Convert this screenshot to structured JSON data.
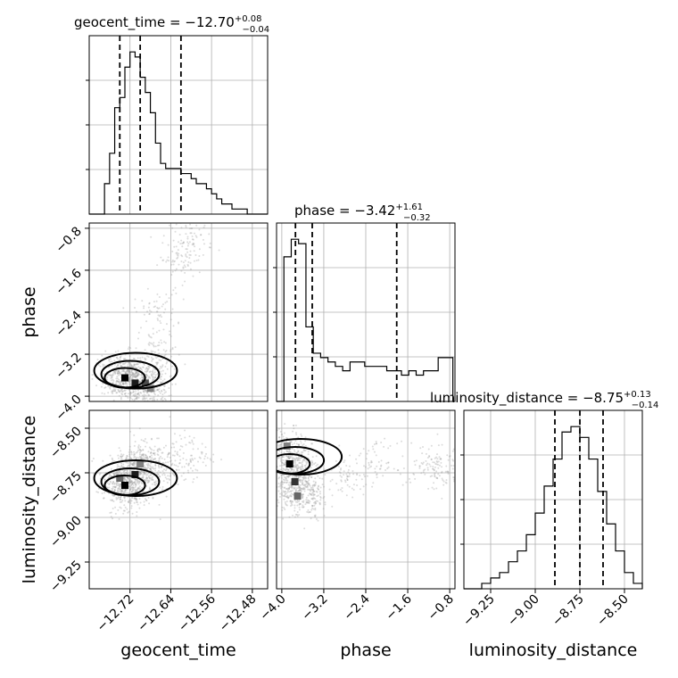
{
  "chart_data": {
    "type": "corner",
    "parameters": [
      "geocent_time",
      "phase",
      "luminosity_distance"
    ],
    "titles": {
      "geocent_time": {
        "name": "geocent_time",
        "median": "−12.70",
        "plus": "+0.08",
        "minus": "−0.04"
      },
      "phase": {
        "name": "phase",
        "median": "−3.42",
        "plus": "+1.61",
        "minus": "−0.32"
      },
      "luminosity_distance": {
        "name": "luminosity_distance",
        "median": "−8.75",
        "plus": "+0.13",
        "minus": "−0.14"
      }
    },
    "axes": {
      "geocent_time": {
        "range": [
          -12.8,
          -12.45
        ],
        "ticks": [
          -12.72,
          -12.64,
          -12.56,
          -12.48
        ],
        "tick_labels": [
          "−12.72",
          "−12.64",
          "−12.56",
          "−12.48"
        ]
      },
      "phase": {
        "range": [
          -4.1,
          -0.7
        ],
        "ticks": [
          -4.0,
          -3.2,
          -2.4,
          -1.6,
          -0.8
        ],
        "tick_labels": [
          "−4.0",
          "−3.2",
          "−2.4",
          "−1.6",
          "−0.8"
        ]
      },
      "luminosity_distance": {
        "range": [
          -9.4,
          -8.4
        ],
        "ticks": [
          -9.25,
          -9.0,
          -8.75,
          -8.5
        ],
        "tick_labels": [
          "−9.25",
          "−9.00",
          "−8.75",
          "−8.50"
        ]
      }
    },
    "histograms": {
      "geocent_time": {
        "edges": [
          -12.8,
          -12.79,
          -12.78,
          -12.77,
          -12.76,
          -12.75,
          -12.74,
          -12.73,
          -12.72,
          -12.71,
          -12.7,
          -12.69,
          -12.68,
          -12.67,
          -12.66,
          -12.65,
          -12.64,
          -12.63,
          -12.62,
          -12.61,
          -12.6,
          -12.59,
          -12.58,
          -12.57,
          -12.56,
          -12.55,
          -12.54,
          -12.53,
          -12.52,
          -12.51,
          -12.5,
          -12.49,
          -12.48,
          -12.47,
          -12.46,
          -12.45
        ],
        "counts": [
          0,
          0,
          0,
          6,
          12,
          21,
          23,
          29,
          32,
          31,
          27,
          24,
          20,
          14,
          10,
          9,
          9,
          9,
          8,
          8,
          7,
          6,
          6,
          5,
          4,
          3,
          2,
          2,
          1,
          1,
          1,
          0,
          0,
          0,
          0
        ],
        "quantiles": [
          -12.74,
          -12.7,
          -12.62
        ]
      },
      "phase": {
        "edges": [
          -4.1,
          -3.96,
          -3.82,
          -3.68,
          -3.54,
          -3.4,
          -3.26,
          -3.12,
          -2.98,
          -2.84,
          -2.7,
          -2.56,
          -2.42,
          -2.28,
          -2.14,
          -2.0,
          -1.86,
          -1.72,
          -1.58,
          -1.44,
          -1.3,
          -1.16,
          -1.02,
          -0.88,
          -0.74
        ],
        "counts": [
          0,
          33,
          37,
          36,
          17,
          11,
          10,
          9,
          8,
          7,
          9,
          9,
          8,
          8,
          8,
          7,
          7,
          6,
          7,
          6,
          7,
          7,
          10,
          10
        ],
        "quantiles": [
          -3.74,
          -3.42,
          -1.81
        ]
      },
      "luminosity_distance": {
        "edges": [
          -9.4,
          -9.35,
          -9.3,
          -9.25,
          -9.2,
          -9.15,
          -9.1,
          -9.05,
          -9.0,
          -8.95,
          -8.9,
          -8.85,
          -8.8,
          -8.75,
          -8.7,
          -8.65,
          -8.6,
          -8.55,
          -8.5,
          -8.45,
          -8.4
        ],
        "counts": [
          0,
          0,
          1,
          2,
          3,
          5,
          7,
          10,
          14,
          19,
          24,
          29,
          30,
          28,
          24,
          18,
          12,
          7,
          3,
          1
        ],
        "quantiles": [
          -8.89,
          -8.75,
          -8.62
        ]
      }
    },
    "pairs": [
      {
        "x": "geocent_time",
        "y": "phase",
        "density": [
          [
            -12.73,
            -3.65,
            1.0
          ],
          [
            -12.71,
            -3.75,
            0.9
          ],
          [
            -12.69,
            -3.75,
            0.7
          ],
          [
            -12.75,
            -3.6,
            0.4
          ],
          [
            -12.72,
            -3.45,
            0.3
          ],
          [
            -12.68,
            -3.85,
            0.5
          ],
          [
            -12.66,
            -3.2,
            0.2
          ],
          [
            -12.67,
            -2.4,
            0.15
          ],
          [
            -12.62,
            -1.4,
            0.15
          ],
          [
            -12.6,
            -1.0,
            0.2
          ]
        ]
      },
      {
        "x": "geocent_time",
        "y": "luminosity_distance",
        "density": [
          [
            -12.73,
            -8.82,
            1.0
          ],
          [
            -12.71,
            -8.76,
            0.9
          ],
          [
            -12.74,
            -8.78,
            0.6
          ],
          [
            -12.7,
            -8.7,
            0.5
          ],
          [
            -12.72,
            -8.88,
            0.4
          ],
          [
            -12.69,
            -8.65,
            0.3
          ],
          [
            -12.67,
            -8.75,
            0.2
          ],
          [
            -12.64,
            -8.7,
            0.15
          ],
          [
            -12.6,
            -8.65,
            0.15
          ]
        ]
      },
      {
        "x": "phase",
        "y": "luminosity_distance",
        "density": [
          [
            -3.85,
            -8.7,
            1.0
          ],
          [
            -3.75,
            -8.8,
            0.8
          ],
          [
            -3.7,
            -8.88,
            0.6
          ],
          [
            -3.9,
            -8.6,
            0.5
          ],
          [
            -3.6,
            -8.75,
            0.4
          ],
          [
            -3.5,
            -8.9,
            0.3
          ],
          [
            -2.8,
            -8.75,
            0.15
          ],
          [
            -2.2,
            -8.7,
            0.15
          ],
          [
            -1.2,
            -8.7,
            0.15
          ],
          [
            -0.9,
            -8.75,
            0.15
          ]
        ]
      }
    ]
  }
}
